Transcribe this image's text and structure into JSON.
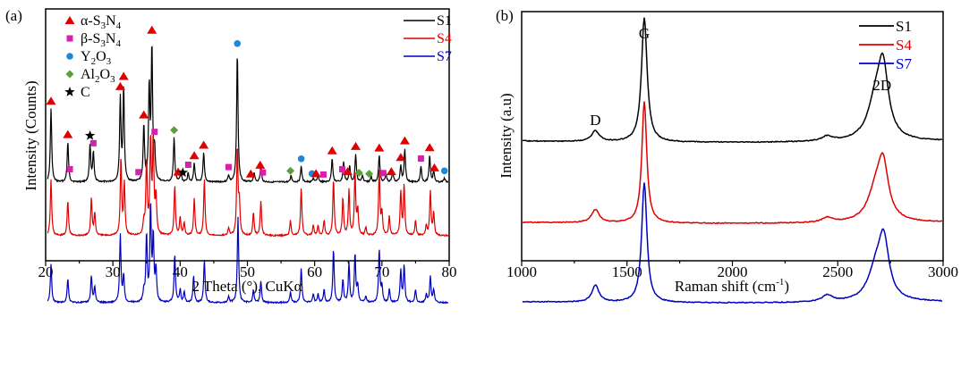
{
  "chart_data": [
    {
      "panel_label": "(a)",
      "type": "line",
      "title": "",
      "xlabel": "2 Theta (°), CuKα",
      "ylabel": "Intensity (Counts)",
      "xlim": [
        20,
        80
      ],
      "xticks": [
        20,
        30,
        40,
        50,
        60,
        70,
        80
      ],
      "xtick_labels": [
        "20",
        "30",
        "40",
        "50",
        "60",
        "70",
        "80"
      ],
      "yticks_shown": false,
      "grid": false,
      "legend_placement": "top-right",
      "series": [
        {
          "name": "S1",
          "color": "#000000",
          "baseline": 2.4,
          "scale": 1.0,
          "peaks": [
            [
              20.8,
              0.55
            ],
            [
              23.3,
              0.3
            ],
            [
              26.6,
              0.28
            ],
            [
              27.1,
              0.22
            ],
            [
              31.1,
              0.62
            ],
            [
              31.6,
              0.7
            ],
            [
              34.6,
              0.42
            ],
            [
              35.4,
              0.7
            ],
            [
              35.8,
              1.0
            ],
            [
              36.2,
              0.22
            ],
            [
              39.1,
              0.33
            ],
            [
              40.1,
              0.08
            ],
            [
              41.2,
              0.07
            ],
            [
              42.1,
              0.14
            ],
            [
              43.5,
              0.22
            ],
            [
              47.2,
              0.05
            ],
            [
              48.5,
              0.98
            ],
            [
              51.0,
              0.07
            ],
            [
              52.0,
              0.12
            ],
            [
              56.5,
              0.05
            ],
            [
              58.0,
              0.12
            ],
            [
              59.8,
              0.03
            ],
            [
              60.5,
              0.05
            ],
            [
              62.6,
              0.18
            ],
            [
              64.3,
              0.15
            ],
            [
              65.2,
              0.12
            ],
            [
              66.1,
              0.21
            ],
            [
              67.1,
              0.05
            ],
            [
              68.4,
              0.04
            ],
            [
              69.6,
              0.2
            ],
            [
              70.6,
              0.06
            ],
            [
              71.6,
              0.08
            ],
            [
              72.8,
              0.12
            ],
            [
              73.4,
              0.25
            ],
            [
              75.8,
              0.12
            ],
            [
              77.1,
              0.2
            ],
            [
              77.7,
              0.08
            ],
            [
              79.3,
              0.03
            ]
          ]
        },
        {
          "name": "S4",
          "color": "#e00000",
          "baseline": 1.2,
          "scale": 1.0,
          "peaks": [
            [
              20.8,
              0.45
            ],
            [
              23.3,
              0.28
            ],
            [
              26.8,
              0.3
            ],
            [
              27.3,
              0.18
            ],
            [
              31.2,
              0.62
            ],
            [
              31.7,
              0.42
            ],
            [
              34.6,
              0.1
            ],
            [
              35.0,
              0.6
            ],
            [
              35.6,
              0.75
            ],
            [
              36.0,
              0.75
            ],
            [
              36.4,
              0.3
            ],
            [
              39.2,
              0.4
            ],
            [
              40.0,
              0.14
            ],
            [
              40.6,
              0.1
            ],
            [
              42.1,
              0.3
            ],
            [
              43.6,
              0.45
            ],
            [
              47.2,
              0.06
            ],
            [
              48.5,
              0.7
            ],
            [
              48.8,
              0.25
            ],
            [
              50.9,
              0.18
            ],
            [
              52.0,
              0.28
            ],
            [
              56.4,
              0.12
            ],
            [
              58.0,
              0.38
            ],
            [
              59.8,
              0.08
            ],
            [
              60.5,
              0.08
            ],
            [
              61.4,
              0.12
            ],
            [
              62.8,
              0.45
            ],
            [
              64.2,
              0.3
            ],
            [
              65.1,
              0.36
            ],
            [
              66.0,
              0.5
            ],
            [
              66.4,
              0.2
            ],
            [
              67.6,
              0.06
            ],
            [
              69.6,
              0.52
            ],
            [
              70.0,
              0.18
            ],
            [
              71.1,
              0.15
            ],
            [
              72.8,
              0.35
            ],
            [
              73.3,
              0.4
            ],
            [
              75.0,
              0.12
            ],
            [
              76.6,
              0.08
            ],
            [
              77.2,
              0.35
            ],
            [
              77.7,
              0.18
            ]
          ]
        },
        {
          "name": "S7",
          "color": "#0000c0",
          "baseline": 0.0,
          "scale": 1.0,
          "peaks": [
            [
              20.8,
              0.36
            ],
            [
              23.3,
              0.23
            ],
            [
              26.8,
              0.25
            ],
            [
              27.3,
              0.15
            ],
            [
              31.1,
              0.63
            ],
            [
              31.6,
              0.25
            ],
            [
              34.6,
              0.1
            ],
            [
              35.0,
              0.62
            ],
            [
              35.6,
              0.9
            ],
            [
              36.0,
              0.6
            ],
            [
              36.4,
              0.3
            ],
            [
              39.2,
              0.45
            ],
            [
              40.0,
              0.12
            ],
            [
              40.6,
              0.1
            ],
            [
              42.0,
              0.25
            ],
            [
              43.6,
              0.4
            ],
            [
              47.2,
              0.06
            ],
            [
              48.6,
              0.8
            ],
            [
              50.9,
              0.12
            ],
            [
              52.0,
              0.2
            ],
            [
              56.4,
              0.1
            ],
            [
              58.0,
              0.32
            ],
            [
              59.8,
              0.08
            ],
            [
              60.5,
              0.08
            ],
            [
              61.4,
              0.12
            ],
            [
              62.8,
              0.5
            ],
            [
              64.2,
              0.22
            ],
            [
              65.1,
              0.36
            ],
            [
              66.0,
              0.45
            ],
            [
              66.4,
              0.15
            ],
            [
              67.6,
              0.06
            ],
            [
              69.6,
              0.5
            ],
            [
              70.0,
              0.15
            ],
            [
              71.1,
              0.12
            ],
            [
              72.8,
              0.3
            ],
            [
              73.3,
              0.35
            ],
            [
              75.0,
              0.12
            ],
            [
              76.6,
              0.08
            ],
            [
              77.2,
              0.25
            ],
            [
              77.7,
              0.12
            ]
          ]
        }
      ],
      "phase_legend": [
        {
          "label": "α-S3N4",
          "main": "α-S",
          "sub1": "3",
          "mid": "N",
          "sub2": "4",
          "marker": "triangle",
          "color": "#e00000"
        },
        {
          "label": "β-S3N4",
          "main": "β-S",
          "sub1": "3",
          "mid": "N",
          "sub2": "4",
          "marker": "square",
          "color": "#d81fb0"
        },
        {
          "label": "Y2O3",
          "main": "Y",
          "sub1": "2",
          "mid": "O",
          "sub2": "3",
          "marker": "circle",
          "color": "#1e88d8"
        },
        {
          "label": "Al2O3",
          "main": "Al",
          "sub1": "2",
          "mid": "O",
          "sub2": "3",
          "marker": "diamond",
          "color": "#5aa03a"
        },
        {
          "label": "C",
          "main": "C",
          "sub1": "",
          "mid": "",
          "sub2": "",
          "marker": "star",
          "color": "#000000"
        }
      ],
      "phase_markers": [
        {
          "x": 20.8,
          "phase": "triangle"
        },
        {
          "x": 23.3,
          "phase": "triangle"
        },
        {
          "x": 23.6,
          "phase": "square"
        },
        {
          "x": 26.6,
          "phase": "star"
        },
        {
          "x": 27.1,
          "phase": "square"
        },
        {
          "x": 31.1,
          "phase": "triangle"
        },
        {
          "x": 31.6,
          "phase": "triangle"
        },
        {
          "x": 33.8,
          "phase": "square"
        },
        {
          "x": 34.6,
          "phase": "triangle"
        },
        {
          "x": 35.8,
          "phase": "triangle"
        },
        {
          "x": 36.2,
          "phase": "square"
        },
        {
          "x": 39.1,
          "phase": "diamond"
        },
        {
          "x": 39.7,
          "phase": "triangle"
        },
        {
          "x": 40.4,
          "phase": "star"
        },
        {
          "x": 41.2,
          "phase": "square"
        },
        {
          "x": 42.1,
          "phase": "triangle"
        },
        {
          "x": 43.5,
          "phase": "triangle"
        },
        {
          "x": 47.2,
          "phase": "square"
        },
        {
          "x": 48.5,
          "phase": "circle"
        },
        {
          "x": 50.5,
          "phase": "triangle"
        },
        {
          "x": 51.9,
          "phase": "triangle"
        },
        {
          "x": 52.3,
          "phase": "square"
        },
        {
          "x": 56.4,
          "phase": "diamond"
        },
        {
          "x": 58.0,
          "phase": "circle"
        },
        {
          "x": 59.6,
          "phase": "circle"
        },
        {
          "x": 60.2,
          "phase": "triangle"
        },
        {
          "x": 61.3,
          "phase": "square"
        },
        {
          "x": 62.6,
          "phase": "triangle"
        },
        {
          "x": 64.1,
          "phase": "square"
        },
        {
          "x": 64.9,
          "phase": "triangle"
        },
        {
          "x": 66.1,
          "phase": "triangle"
        },
        {
          "x": 66.6,
          "phase": "diamond"
        },
        {
          "x": 68.1,
          "phase": "diamond"
        },
        {
          "x": 69.6,
          "phase": "triangle"
        },
        {
          "x": 70.2,
          "phase": "square"
        },
        {
          "x": 71.4,
          "phase": "triangle"
        },
        {
          "x": 72.8,
          "phase": "triangle"
        },
        {
          "x": 73.4,
          "phase": "triangle"
        },
        {
          "x": 75.8,
          "phase": "square"
        },
        {
          "x": 77.1,
          "phase": "triangle"
        },
        {
          "x": 77.8,
          "phase": "triangle"
        },
        {
          "x": 79.3,
          "phase": "circle"
        }
      ]
    },
    {
      "panel_label": "(b)",
      "type": "line",
      "title": "",
      "xlabel": "Raman shift (cm",
      "xlabel_sup": "-1",
      "xlabel_tail": ")",
      "ylabel": "Intensity (a.u)",
      "xlim": [
        1000,
        3000
      ],
      "xticks": [
        1000,
        1500,
        2000,
        2500,
        3000
      ],
      "xtick_labels": [
        "1000",
        "1500",
        "2000",
        "2500",
        "3000"
      ],
      "yticks_shown": false,
      "grid": false,
      "legend_placement": "top-right",
      "annotations": [
        {
          "text": "D",
          "x": 1350
        },
        {
          "text": "G",
          "x": 1582
        },
        {
          "text": "2D",
          "x": 2710
        }
      ],
      "series": [
        {
          "name": "S1",
          "color": "#000000",
          "baseline": 2.0,
          "peaks": [
            [
              1350,
              0.09,
              22
            ],
            [
              1582,
              1.05,
              16
            ],
            [
              2450,
              0.04,
              30
            ],
            [
              2680,
              0.3,
              45
            ],
            [
              2715,
              0.55,
              30
            ]
          ]
        },
        {
          "name": "S4",
          "color": "#e00000",
          "baseline": 1.0,
          "peaks": [
            [
              1350,
              0.14,
              22
            ],
            [
              1582,
              1.3,
              14
            ],
            [
              2450,
              0.05,
              30
            ],
            [
              2680,
              0.3,
              45
            ],
            [
              2715,
              0.55,
              30
            ]
          ]
        },
        {
          "name": "S7",
          "color": "#0000c0",
          "baseline": 0.0,
          "peaks": [
            [
              1350,
              0.18,
              20
            ],
            [
              1582,
              1.28,
              15
            ],
            [
              2450,
              0.07,
              30
            ],
            [
              2680,
              0.3,
              45
            ],
            [
              2718,
              0.6,
              30
            ]
          ]
        }
      ]
    }
  ]
}
